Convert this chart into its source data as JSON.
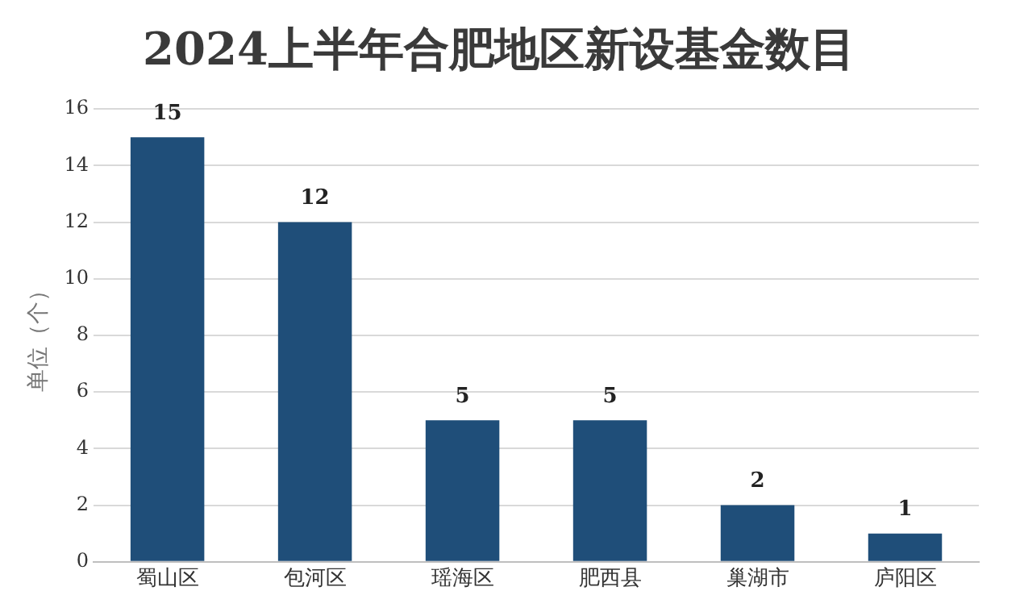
{
  "chart_data": {
    "type": "bar",
    "title": "2024上半年合肥地区新设基金数目",
    "ylabel": "单位（个）",
    "categories": [
      "蜀山区",
      "包河区",
      "瑶海区",
      "肥西县",
      "巢湖市",
      "庐阳区"
    ],
    "values": [
      15,
      12,
      5,
      5,
      2,
      1
    ],
    "color": "#1f4e79",
    "ylim": [
      0,
      16
    ],
    "yticks": [
      0,
      2,
      4,
      6,
      8,
      10,
      12,
      14,
      16
    ],
    "grid": "y",
    "data_labels": true
  }
}
